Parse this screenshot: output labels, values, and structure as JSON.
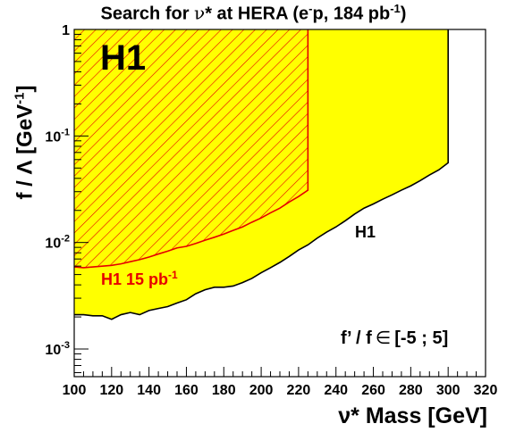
{
  "chart_data": {
    "type": "area",
    "title": {
      "prefix": "Search for ",
      "symbol": "ν",
      "mid": "* at HERA (e",
      "sup1": "-",
      "mid2": "p, 184 pb",
      "sup2": "-1",
      "suffix": ")"
    },
    "xlabel": "ν* Mass [GeV]",
    "ylabel": {
      "base": "f / Λ [GeV",
      "sup": "-1",
      "close": "]"
    },
    "xlim": [
      100,
      320
    ],
    "ylim": [
      0.00055,
      1
    ],
    "yscale": "log",
    "x_ticks": [
      100,
      120,
      140,
      160,
      180,
      200,
      220,
      240,
      260,
      280,
      300,
      320
    ],
    "y_ticks": [
      {
        "value": 1,
        "label": "1"
      },
      {
        "value": 0.1,
        "label": "10",
        "exp": "-1"
      },
      {
        "value": 0.01,
        "label": "10",
        "exp": "-2"
      },
      {
        "value": 0.001,
        "label": "10",
        "exp": "-3"
      }
    ],
    "colors": {
      "yellow_fill": "#ffff00",
      "hatch": "#e60000",
      "curve": "#000000"
    },
    "series": [
      {
        "name": "H1",
        "style": "yellow-filled-exclusion",
        "x": [
          100,
          105,
          110,
          115,
          120,
          125,
          130,
          135,
          140,
          145,
          150,
          155,
          160,
          165,
          170,
          175,
          180,
          185,
          190,
          195,
          200,
          205,
          210,
          215,
          220,
          225,
          230,
          235,
          240,
          245,
          250,
          255,
          260,
          265,
          270,
          275,
          280,
          285,
          290,
          295,
          300
        ],
        "y": [
          0.0021,
          0.0021,
          0.00205,
          0.00205,
          0.0019,
          0.0021,
          0.0022,
          0.0021,
          0.0023,
          0.0024,
          0.0025,
          0.0027,
          0.0029,
          0.0033,
          0.0036,
          0.0038,
          0.0038,
          0.0039,
          0.0042,
          0.0046,
          0.0052,
          0.0058,
          0.0065,
          0.0074,
          0.0085,
          0.0095,
          0.011,
          0.0125,
          0.014,
          0.016,
          0.0185,
          0.021,
          0.023,
          0.0255,
          0.028,
          0.031,
          0.034,
          0.038,
          0.043,
          0.048,
          0.056
        ]
      },
      {
        "name": "H1 15 pb",
        "name_sup": "-1",
        "style": "red-hatched-exclusion",
        "x": [
          100,
          105,
          110,
          115,
          120,
          125,
          130,
          135,
          140,
          145,
          150,
          155,
          160,
          165,
          170,
          175,
          180,
          185,
          190,
          195,
          200,
          205,
          210,
          215,
          220,
          225
        ],
        "y": [
          0.0059,
          0.0058,
          0.0059,
          0.006,
          0.0061,
          0.0063,
          0.0066,
          0.0069,
          0.0073,
          0.0078,
          0.0083,
          0.0089,
          0.0092,
          0.0098,
          0.0105,
          0.0112,
          0.012,
          0.013,
          0.014,
          0.0155,
          0.017,
          0.019,
          0.021,
          0.024,
          0.027,
          0.031
        ]
      }
    ],
    "annotations": {
      "logo": "H1",
      "curve_label": "H1",
      "ratio_text": "f’ / f",
      "ratio_symbol": "∈",
      "ratio_range": "[-5 ; 5]"
    }
  }
}
